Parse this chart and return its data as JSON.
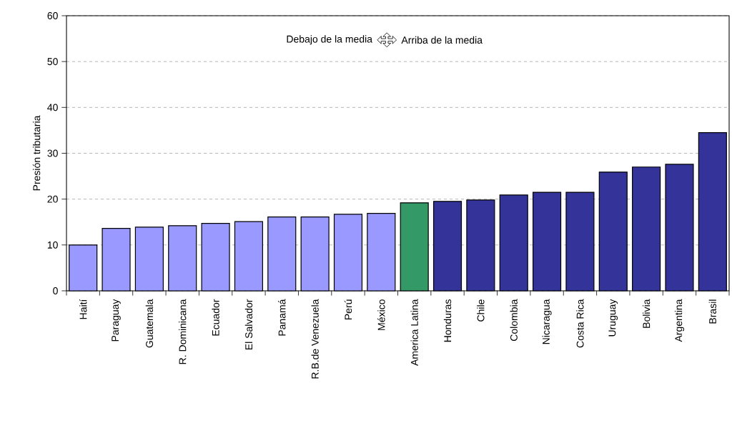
{
  "chart_data": {
    "type": "bar",
    "ylabel": "Presión tributaria",
    "categories": [
      "Haití",
      "Paraguay",
      "Guatemala",
      "R. Dominicana",
      "Ecuador",
      "El Salvador",
      "Panamá",
      "R.B.de Venezuela",
      "Perú",
      "México",
      "America Latina",
      "Honduras",
      "Chile",
      "Colombia",
      "Nicaragua",
      "Costa Rica",
      "Uruguay",
      "Bolivia",
      "Argentina",
      "Brasil"
    ],
    "values": [
      10.0,
      13.6,
      13.9,
      14.2,
      14.7,
      15.1,
      16.1,
      16.1,
      16.7,
      16.9,
      19.2,
      19.5,
      19.8,
      20.9,
      21.5,
      21.5,
      25.9,
      27.0,
      27.6,
      34.5
    ],
    "colors": [
      "#9999ff",
      "#9999ff",
      "#9999ff",
      "#9999ff",
      "#9999ff",
      "#9999ff",
      "#9999ff",
      "#9999ff",
      "#9999ff",
      "#9999ff",
      "#339966",
      "#333399",
      "#333399",
      "#333399",
      "#333399",
      "#333399",
      "#333399",
      "#333399",
      "#333399",
      "#333399"
    ],
    "ylim": [
      0,
      60
    ],
    "yticks": [
      0,
      10,
      20,
      30,
      40,
      50,
      60
    ],
    "grid": "y",
    "annotations": [
      "Debajo de la media",
      "Arriba de la media"
    ]
  }
}
